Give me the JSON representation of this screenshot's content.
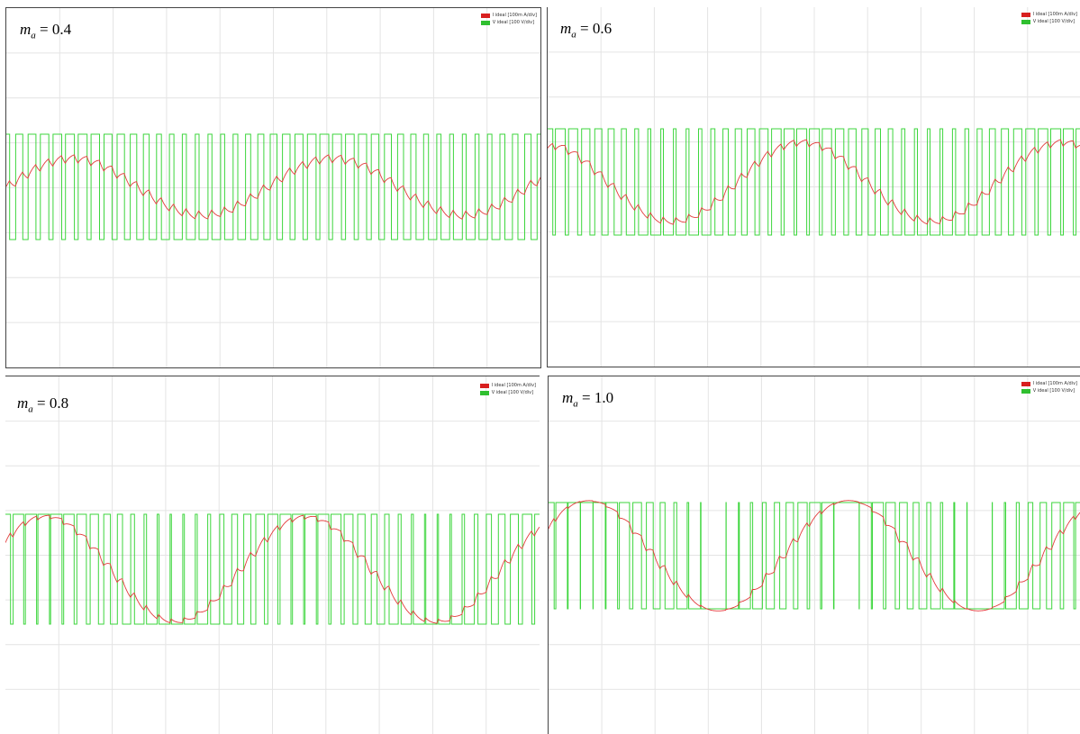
{
  "colors": {
    "current": "#e33b3b",
    "voltage": "#3dd63d",
    "grid": "#e4e4e4",
    "frame": "#222222"
  },
  "chart_data": [
    {
      "type": "line",
      "label_symbol": "m",
      "label_sub": "a",
      "label_value": "= 0.4",
      "ma": 0.4,
      "legend": [
        "I ideal [100m A/div]",
        "V ideal [100 V/div]"
      ],
      "series": [
        {
          "name": "I ideal [100m A/div]",
          "kind": "current"
        },
        {
          "name": "V ideal [100 V/div]",
          "kind": "voltage"
        }
      ]
    },
    {
      "type": "line",
      "label_symbol": "m",
      "label_sub": "a",
      "label_value": "= 0.6",
      "ma": 0.6,
      "legend": [
        "I ideal [100m A/div]",
        "V ideal [100 V/div]"
      ],
      "series": [
        {
          "name": "I ideal [100m A/div]",
          "kind": "current"
        },
        {
          "name": "V ideal [100 V/div]",
          "kind": "voltage"
        }
      ]
    },
    {
      "type": "line",
      "label_symbol": "m",
      "label_sub": "a",
      "label_value": "= 0.8",
      "ma": 0.8,
      "legend": [
        "I ideal [100m A/div]",
        "V ideal [100 V/div]"
      ],
      "series": [
        {
          "name": "I ideal [100m A/div]",
          "kind": "current"
        },
        {
          "name": "V ideal [100 V/div]",
          "kind": "voltage"
        }
      ]
    },
    {
      "type": "line",
      "label_symbol": "m",
      "label_sub": "a",
      "label_value": "= 1.0",
      "ma": 1.0,
      "legend": [
        "I ideal [100m A/div]",
        "V ideal [100 V/div]"
      ],
      "series": [
        {
          "name": "I ideal [100m A/div]",
          "kind": "current"
        },
        {
          "name": "V ideal [100 V/div]",
          "kind": "voltage"
        }
      ]
    }
  ]
}
